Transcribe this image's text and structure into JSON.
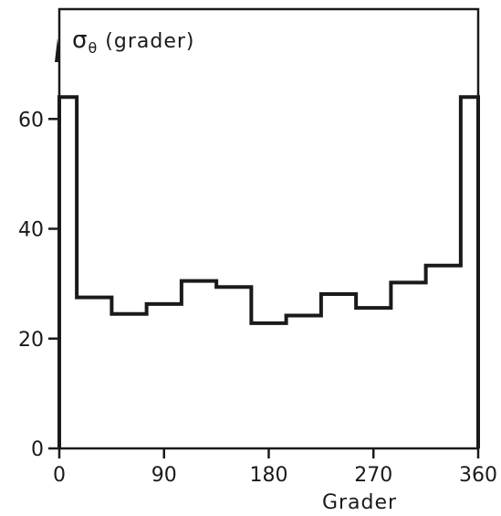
{
  "chart_data": {
    "type": "line",
    "style": "step",
    "title": "",
    "ylabel": {
      "symbol": "σ",
      "subscript": "θ",
      "text": "(grader)"
    },
    "xlabel": "Grader",
    "xlim": [
      0,
      360
    ],
    "ylim": [
      0,
      80
    ],
    "x_ticks": [
      0,
      90,
      180,
      270,
      360
    ],
    "x_tick_labels": [
      "0",
      "90",
      "180",
      "270",
      "360"
    ],
    "y_ticks": [
      0,
      20,
      40,
      60
    ],
    "y_tick_labels": [
      "0",
      "20",
      "40",
      "60"
    ],
    "grid": false,
    "series": [
      {
        "bin_edges": [
          0,
          15,
          45,
          75,
          105,
          135,
          165,
          195,
          225,
          255,
          285,
          315,
          345,
          360
        ],
        "values": [
          64,
          27.5,
          24.5,
          26.3,
          30.5,
          29.4,
          22.8,
          24.2,
          28.1,
          25.6,
          30.2,
          33.3,
          64
        ]
      }
    ],
    "colors": {
      "line": "#1a1a1a",
      "background": "#ffffff"
    }
  }
}
